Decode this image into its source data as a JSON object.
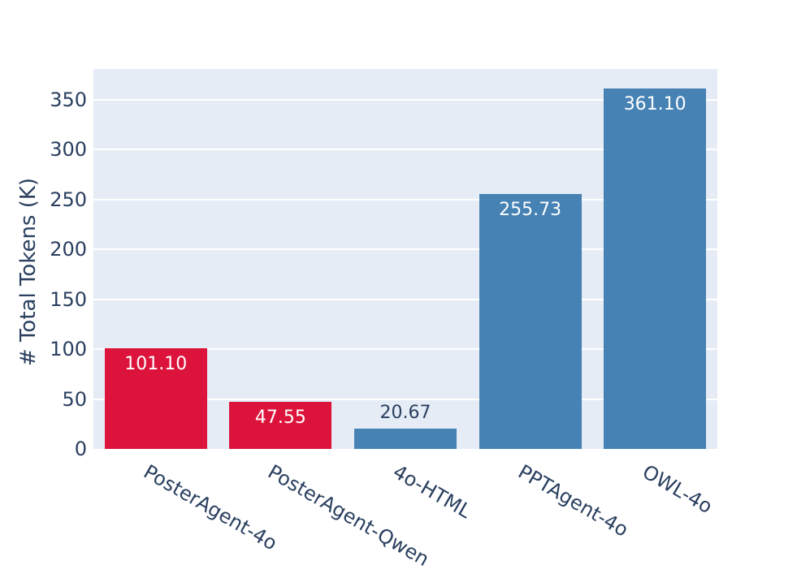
{
  "chart_data": {
    "type": "bar",
    "title": "",
    "categories": [
      "PosterAgent-4o",
      "PosterAgent-Qwen",
      "4o-HTML",
      "PPTAgent-4o",
      "OWL-4o"
    ],
    "values": [
      101.1,
      47.55,
      20.67,
      255.73,
      361.1
    ],
    "value_labels": [
      "101.10",
      "47.55",
      "20.67",
      "255.73",
      "361.10"
    ],
    "xlabel": "",
    "ylabel": "# Total Tokens (K)",
    "ylim": [
      0,
      381
    ],
    "yticks": [
      0,
      50,
      100,
      150,
      200,
      250,
      300,
      350
    ],
    "grid": true,
    "legend": "none",
    "xtick_angle_deg": 30,
    "bar_colors": [
      "#DC143C",
      "#DC143C",
      "#4682B4",
      "#4682B4",
      "#4682B4"
    ],
    "colors": {
      "page_bg": "#FFFFFF",
      "plot_bg": "#E5ECF6",
      "grid": "#FFFFFF",
      "text": "#2A3F5F",
      "label_inside": "#FFFFFF",
      "label_outside": "#2A3F5F"
    }
  }
}
